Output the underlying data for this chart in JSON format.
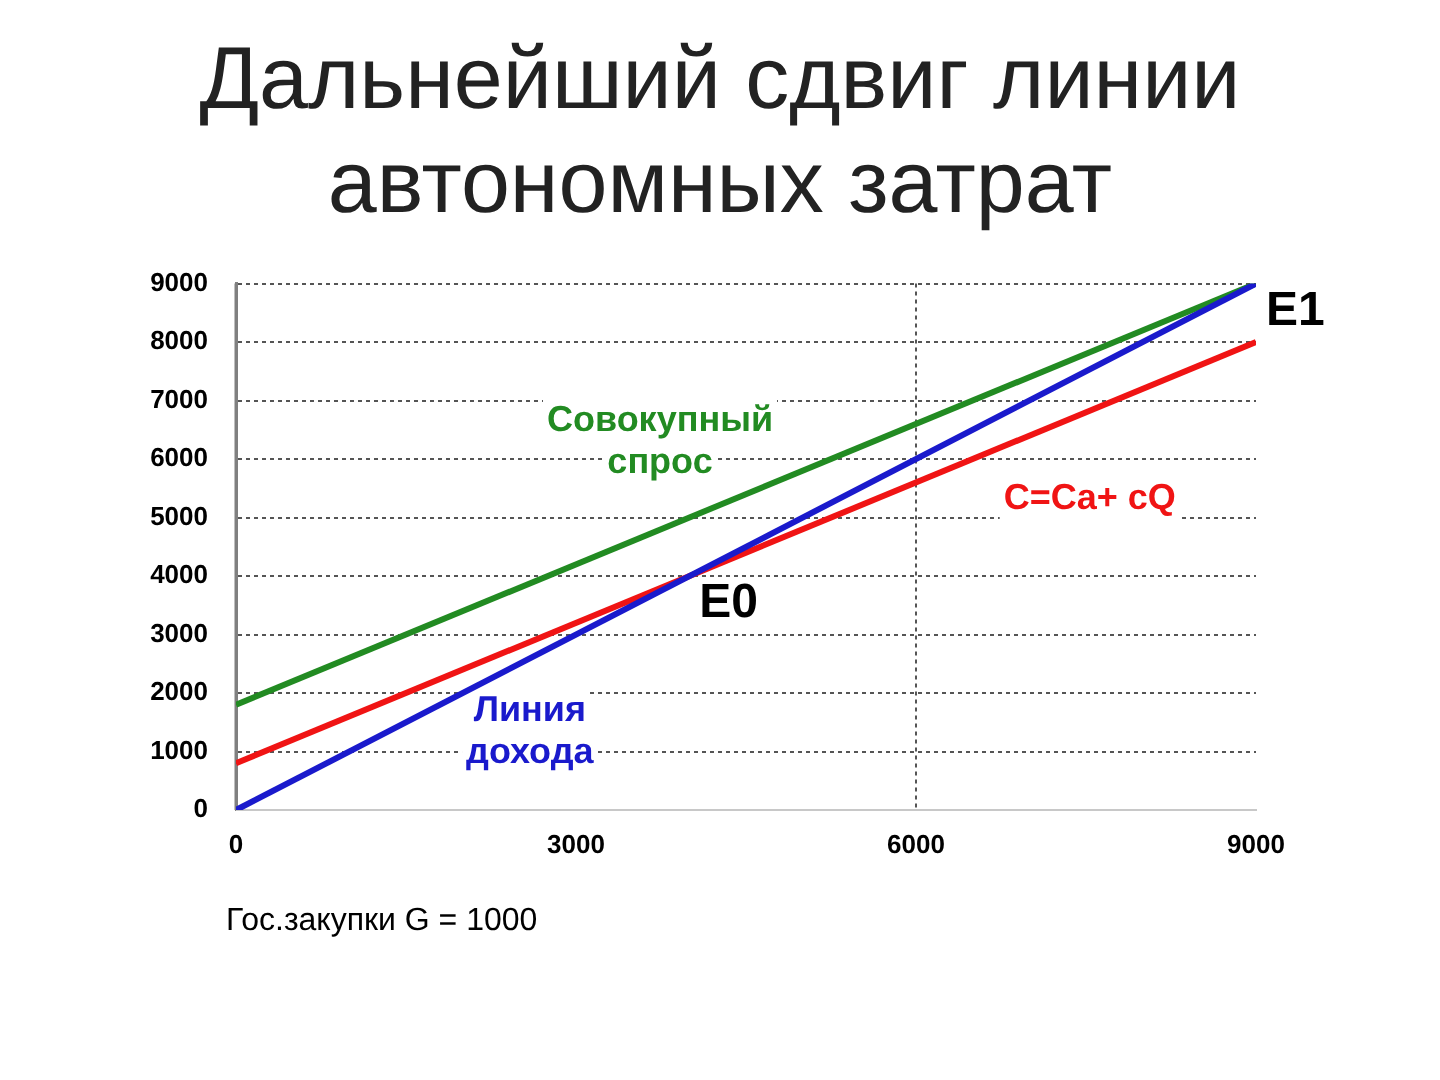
{
  "chart_data": {
    "type": "line",
    "title": "Дальнейший сдвиг линии автономных затрат",
    "x": [
      0,
      9000
    ],
    "series": [
      {
        "name": "Линия дохода",
        "color": "#1a1acc",
        "values": [
          0,
          9000
        ]
      },
      {
        "name": "C=Ca+ cQ",
        "color": "#f01414",
        "values": [
          800,
          8000
        ]
      },
      {
        "name": "Совокупный спрос",
        "color": "#228b22",
        "values": [
          1800,
          9000
        ]
      }
    ],
    "xlim": [
      0,
      9000
    ],
    "ylim": [
      0,
      9000
    ],
    "xticks": [
      0,
      3000,
      6000,
      9000
    ],
    "yticks": [
      0,
      1000,
      2000,
      3000,
      4000,
      5000,
      6000,
      7000,
      8000,
      9000
    ],
    "grid": "y",
    "ref_lines": [
      {
        "axis": "x",
        "value": 6000,
        "color": "#555555",
        "line_style": "dotted"
      }
    ],
    "annotations": [
      {
        "text": "E0",
        "x": 4000,
        "y": 4000
      },
      {
        "text": "E1",
        "x": 9000,
        "y": 9000
      },
      "Гос.закупки G = 1000"
    ]
  }
}
